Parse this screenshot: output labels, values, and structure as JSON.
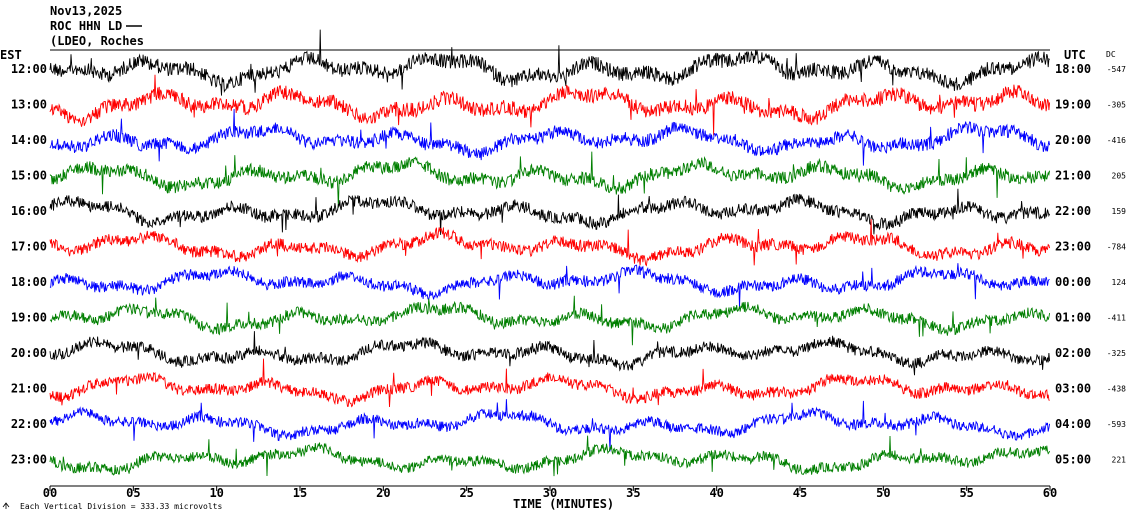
{
  "header": {
    "date": "Nov13,2025",
    "station": "ROC HHN LD",
    "network": "(LDEO, Roches"
  },
  "left_axis_title": "EST",
  "right_axis_title": "UTC",
  "dc_title": "DC",
  "footer_note": "Each Vertical Division =  333.33 microvolts",
  "colors": {
    "black": "#000000",
    "red": "#ff0000",
    "blue": "#0000ff",
    "green": "#007f00"
  },
  "chart_data": {
    "type": "line",
    "title": "",
    "xlabel": "TIME (MINUTES)",
    "xlim": [
      0,
      60
    ],
    "x_ticks": [
      "00",
      "05",
      "10",
      "15",
      "20",
      "25",
      "30",
      "35",
      "40",
      "45",
      "50",
      "55",
      "60"
    ],
    "est_labels": [
      "12:00",
      "13:00",
      "14:00",
      "15:00",
      "16:00",
      "17:00",
      "18:00",
      "19:00",
      "20:00",
      "21:00",
      "22:00",
      "23:00"
    ],
    "utc_labels": [
      "18:00",
      "19:00",
      "20:00",
      "21:00",
      "22:00",
      "23:00",
      "00:00",
      "01:00",
      "02:00",
      "03:00",
      "04:00",
      "05:00"
    ],
    "dc_values": [
      "-547",
      "-305",
      "-416",
      "205",
      "159",
      "-784",
      "124",
      "-411",
      "-325",
      "-438",
      "-593",
      "221"
    ],
    "trace_colors": [
      "black",
      "red",
      "blue",
      "green",
      "black",
      "red",
      "blue",
      "green",
      "black",
      "red",
      "blue",
      "green"
    ],
    "trace_amplitude_level": [
      0.9,
      0.9,
      0.8,
      0.8,
      0.75,
      0.75,
      0.7,
      0.7,
      0.7,
      0.7,
      0.65,
      0.65
    ]
  }
}
